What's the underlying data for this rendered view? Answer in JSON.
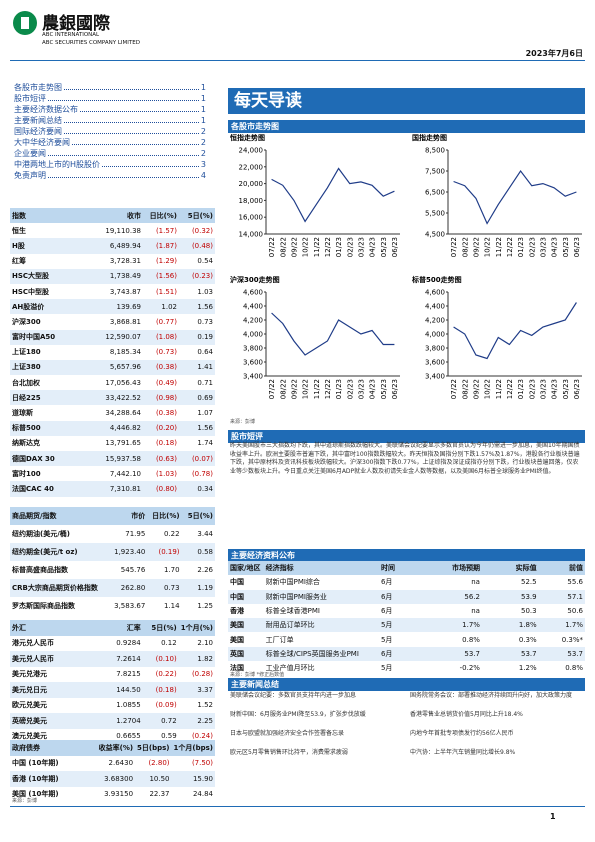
{
  "header": {
    "logo": "農銀國際",
    "company_en_1": "ABC INTERNATIONAL",
    "company_en_2": "ABC SECURITIES COMPANY LIMITED",
    "date": "2023年7月6日"
  },
  "toc": [
    {
      "label": "各股市走势图",
      "page": "1"
    },
    {
      "label": "股市短评",
      "page": "1"
    },
    {
      "label": "主要经济数据公布",
      "page": "1"
    },
    {
      "label": "主要新闻总结",
      "page": "1"
    },
    {
      "label": "国际经济要闻",
      "page": "2"
    },
    {
      "label": "大中华经济要闻",
      "page": "2"
    },
    {
      "label": "企业要闻",
      "page": "2"
    },
    {
      "label": "中港两地上市的H股股价",
      "page": "3"
    },
    {
      "label": "免责声明",
      "page": "4"
    }
  ],
  "indices": {
    "header": [
      "指数",
      "收市",
      "日比(%)",
      "5日(%)"
    ],
    "rows": [
      [
        "恒生",
        "19,110.38",
        "(1.57)",
        "(0.32)"
      ],
      [
        "H股",
        "6,489.94",
        "(1.87)",
        "(0.48)"
      ],
      [
        "红筹",
        "3,728.31",
        "(1.29)",
        "0.54"
      ],
      [
        "HSC大型股",
        "1,738.49",
        "(1.56)",
        "(0.23)"
      ],
      [
        "HSC中型股",
        "3,743.87",
        "(1.51)",
        "1.03"
      ],
      [
        "AH股溢价",
        "139.69",
        "1.02",
        "1.56"
      ],
      [
        "沪深300",
        "3,868.81",
        "(0.77)",
        "0.73"
      ],
      [
        "富时中国A50",
        "12,590.07",
        "(1.08)",
        "0.19"
      ],
      [
        "上证180",
        "8,185.34",
        "(0.73)",
        "0.64"
      ],
      [
        "上证380",
        "5,657.96",
        "(0.38)",
        "1.41"
      ],
      [
        "台北加权",
        "17,056.43",
        "(0.49)",
        "0.71"
      ],
      [
        "日经225",
        "33,422.52",
        "(0.98)",
        "0.69"
      ],
      [
        "道琼斯",
        "34,288.64",
        "(0.38)",
        "1.07"
      ],
      [
        "标普500",
        "4,446.82",
        "(0.20)",
        "1.56"
      ],
      [
        "纳斯达克",
        "13,791.65",
        "(0.18)",
        "1.74"
      ],
      [
        "德国DAX 30",
        "15,937.58",
        "(0.63)",
        "(0.07)"
      ],
      [
        "富时100",
        "7,442.10",
        "(1.03)",
        "(0.78)"
      ],
      [
        "法国CAC 40",
        "7,310.81",
        "(0.80)",
        "0.34"
      ]
    ]
  },
  "commodities": {
    "header": [
      "商品期货/指数",
      "市价",
      "日比(%)",
      "5日(%)"
    ],
    "rows": [
      [
        "纽约期油(美元/桶)",
        "71.95",
        "0.22",
        "3.44"
      ],
      [
        "纽约期金(美元/t oz)",
        "1,923.40",
        "(0.19)",
        "0.58"
      ],
      [
        "标普高盛商品指数",
        "545.76",
        "1.70",
        "2.26"
      ],
      [
        "CRB大宗商品期货价格指数",
        "262.80",
        "0.73",
        "1.19"
      ],
      [
        "罗杰斯国际商品指数",
        "3,583.67",
        "1.14",
        "1.25"
      ]
    ]
  },
  "fx": {
    "header": [
      "外汇",
      "汇率",
      "5日(%)",
      "1个月(%)"
    ],
    "rows": [
      [
        "港元兑人民币",
        "0.9284",
        "0.12",
        "2.10"
      ],
      [
        "美元兑人民币",
        "7.2614",
        "(0.10)",
        "1.82"
      ],
      [
        "美元兑港元",
        "7.8215",
        "(0.22)",
        "(0.28)"
      ],
      [
        "美元兑日元",
        "144.50",
        "(0.18)",
        "3.37"
      ],
      [
        "欧元兑美元",
        "1.0855",
        "(0.09)",
        "1.52"
      ],
      [
        "英磅兑美元",
        "1.2704",
        "0.72",
        "2.25"
      ],
      [
        "澳元兑美元",
        "0.6655",
        "0.59",
        "(0.24)"
      ]
    ]
  },
  "bonds": {
    "header": [
      "政府债券",
      "收益率(%)",
      "5日(bps)",
      "1个月(bps)"
    ],
    "rows": [
      [
        "中国 (10年期)",
        "2.6430",
        "(2.80)",
        "(7.50)"
      ],
      [
        "香港 (10年期)",
        "3.68300",
        "10.50",
        "15.90"
      ],
      [
        "美国 (10年期)",
        "3.93150",
        "22.37",
        "24.84"
      ]
    ]
  },
  "left_source": "来源：彭博",
  "main_title": "每天导读",
  "charts_section": "各股市走势图",
  "chart_data": [
    {
      "type": "line",
      "title": "恒指走势图",
      "color": "#1f3c88",
      "categories": [
        "07/22",
        "08/22",
        "09/22",
        "10/22",
        "11/22",
        "12/22",
        "01/23",
        "02/23",
        "03/23",
        "04/23",
        "05/23",
        "06/23"
      ],
      "values": [
        20500,
        19800,
        18000,
        15500,
        17500,
        19500,
        21800,
        20000,
        20200,
        19800,
        18500,
        19100
      ],
      "ylim": [
        14000,
        24000
      ],
      "yticks": [
        {
          "value": 14000,
          "label": "14,000"
        },
        {
          "value": 16000,
          "label": "16,000"
        },
        {
          "value": 18000,
          "label": "18,000"
        },
        {
          "value": 20000,
          "label": "20,000"
        },
        {
          "value": 22000,
          "label": "22,000"
        },
        {
          "value": 24000,
          "label": "24,000"
        }
      ]
    },
    {
      "type": "line",
      "title": "国指走势图",
      "color": "#1f3c88",
      "categories": [
        "07/22",
        "08/22",
        "09/22",
        "10/22",
        "11/22",
        "12/22",
        "01/23",
        "02/23",
        "03/23",
        "04/23",
        "05/23",
        "06/23"
      ],
      "values": [
        7000,
        6800,
        6200,
        5000,
        5900,
        6700,
        7500,
        6800,
        6900,
        6700,
        6300,
        6500
      ],
      "ylim": [
        4500,
        8500
      ],
      "yticks": [
        {
          "value": 4500,
          "label": "4,500"
        },
        {
          "value": 5500,
          "label": "5,500"
        },
        {
          "value": 6500,
          "label": "6,500"
        },
        {
          "value": 7500,
          "label": "7,500"
        },
        {
          "value": 8500,
          "label": "8,500"
        }
      ]
    },
    {
      "type": "line",
      "title": "沪深300走势图",
      "color": "#1f3c88",
      "categories": [
        "07/22",
        "08/22",
        "09/22",
        "10/22",
        "11/22",
        "12/22",
        "01/23",
        "02/23",
        "03/23",
        "04/23",
        "05/23",
        "06/23"
      ],
      "values": [
        4300,
        4150,
        3900,
        3700,
        3800,
        3900,
        4200,
        4100,
        4000,
        4050,
        3850,
        3850
      ],
      "ylim": [
        3400,
        4600
      ],
      "yticks": [
        {
          "value": 3400,
          "label": "3,400"
        },
        {
          "value": 3600,
          "label": "3,600"
        },
        {
          "value": 3800,
          "label": "3,800"
        },
        {
          "value": 4000,
          "label": "4,000"
        },
        {
          "value": 4200,
          "label": "4,200"
        },
        {
          "value": 4400,
          "label": "4,400"
        },
        {
          "value": 4600,
          "label": "4,600"
        }
      ]
    },
    {
      "type": "line",
      "title": "标普500走势图",
      "color": "#1f3c88",
      "categories": [
        "07/22",
        "08/22",
        "09/22",
        "10/22",
        "11/22",
        "12/22",
        "01/23",
        "02/23",
        "03/23",
        "04/23",
        "05/23",
        "06/23"
      ],
      "values": [
        4100,
        4000,
        3700,
        3650,
        3950,
        3850,
        4050,
        3980,
        4100,
        4150,
        4200,
        4450
      ],
      "ylim": [
        3400,
        4600
      ],
      "yticks": [
        {
          "value": 3400,
          "label": "3,400"
        },
        {
          "value": 3600,
          "label": "3,600"
        },
        {
          "value": 3800,
          "label": "3,800"
        },
        {
          "value": 4000,
          "label": "4,000"
        },
        {
          "value": 4200,
          "label": "4,200"
        },
        {
          "value": 4400,
          "label": "4,400"
        },
        {
          "value": 4600,
          "label": "4,600"
        }
      ]
    }
  ],
  "charts_source": "来源：彭博",
  "commentary": {
    "title": "股市短评",
    "text": "昨天美国股市三大指数均下跌，其中道琼斯指数跌幅较大。美联储会议纪要显示多数官员认为今年仍需进一步加息，美国10年期国债收益率上升。欧洲主要股市普遍下跌，其中富时100指数跌幅较大。昨天恒指及国指分别下跌1.57%及1.87%，港股各行业板块普遍下跌，其中原材料及资讯科技板块跌幅较大。沪深300指数下跌0.77%，上证综指及深证成指亦分别下跌，行业板块普遍回落，仅农业等少数板块上升。今日重点关注美国6月ADP就业人数及初请失业金人数等数据，以及美国6月标普全球服务业PMI终值。"
  },
  "econ": {
    "title": "主要经济资料公布",
    "header": [
      "国家/地区",
      "经济指标",
      "时间",
      "市场预期",
      "实际值",
      "前值"
    ],
    "rows": [
      [
        "中国",
        "财新中国PMI综合",
        "6月",
        "na",
        "52.5",
        "55.6"
      ],
      [
        "中国",
        "财新中国PMI服务业",
        "6月",
        "56.2",
        "53.9",
        "57.1"
      ],
      [
        "香港",
        "标普全球香港PMI",
        "6月",
        "na",
        "50.3",
        "50.6"
      ],
      [
        "美国",
        "耐用品订单环比",
        "5月",
        "1.7%",
        "1.8%",
        "1.7%"
      ],
      [
        "美国",
        "工厂订单",
        "5月",
        "0.8%",
        "0.3%",
        "0.3%*"
      ],
      [
        "英国",
        "标普全球/CIPS英国服务业PMI",
        "6月",
        "53.7",
        "53.7",
        "53.7"
      ],
      [
        "法国",
        "工业产值月环比",
        "5月",
        "-0.2%",
        "1.2%",
        "0.8%"
      ]
    ],
    "note": "来源：彭博 *修正后数值"
  },
  "news": {
    "title": "主要新闻总结",
    "left": [
      "美联储会议纪要：多数官员支持年内进一步加息",
      "财新中国：6月服务业PMI降至53.9，扩张步伐放缓",
      "日本与欧盟就加强经济安全合作签署备忘录",
      "欧元区5月零售销售环比持平，消费需求疲弱"
    ],
    "right": [
      "国务院常务会议：部署推动经济持续回升向好，加大政策力度",
      "香港零售业总销货价值5月同比上升18.4%",
      "内地今年首批专项债发行约56亿人民币",
      "中汽协：上半年汽车销量同比增长9.8%"
    ]
  },
  "footer": {
    "page": "1"
  }
}
